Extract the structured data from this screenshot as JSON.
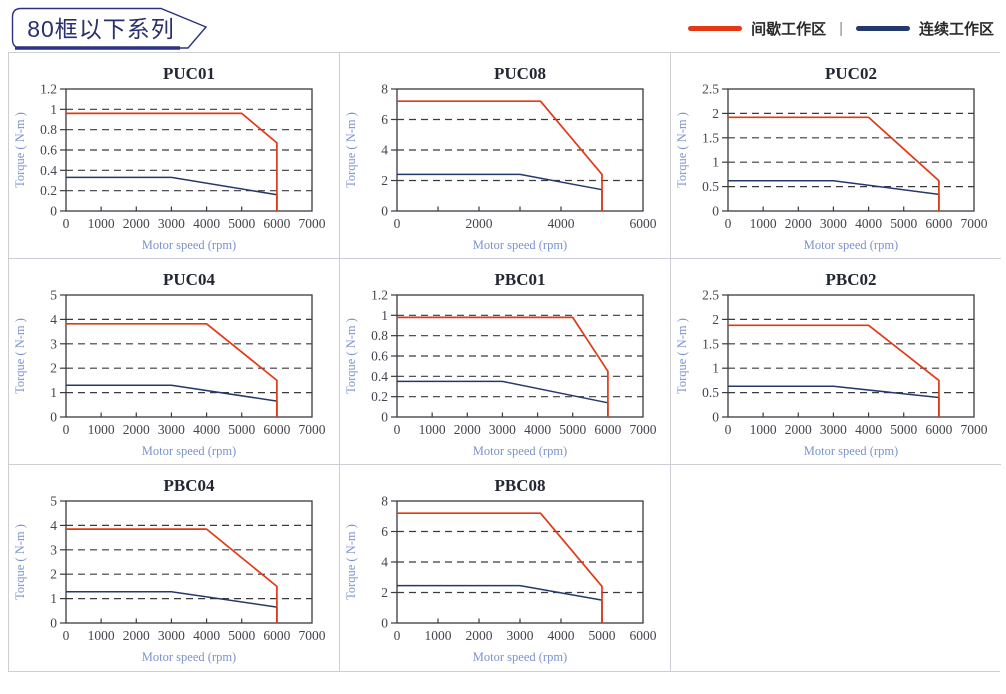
{
  "header": {
    "badge": "80框以下系列"
  },
  "legend": {
    "items": [
      {
        "key": "intermittent",
        "label": "间歇工作区",
        "color": "#e23914"
      },
      {
        "key": "continuous",
        "label": "连续工作区",
        "color": "#24396b"
      }
    ],
    "separator": "|"
  },
  "colors": {
    "accent_red": "#e23914",
    "accent_navy": "#24396b",
    "badge_navy": "#2b3380",
    "grid_line": "#3a3a40",
    "cell_border": "#ccced6",
    "axis_label_blue": "#7b93cc"
  },
  "chart_data": [
    {
      "type": "line",
      "title": "PUC01",
      "xlabel": "Motor speed (rpm)",
      "ylabel": "Torque ( N-m )",
      "xlim": [
        0,
        7000
      ],
      "ylim": [
        0,
        1.2
      ],
      "xticks": [
        0,
        1000,
        2000,
        3000,
        4000,
        5000,
        6000,
        7000
      ],
      "xticklabels": [
        "0",
        "1000",
        "2000",
        "3000",
        "4000",
        "5000",
        "6000",
        "7000"
      ],
      "yticks": [
        0,
        0.2,
        0.4,
        0.6,
        0.8,
        1,
        1.2
      ],
      "yticklabels": [
        "0",
        "0.2",
        "0.4",
        "0.6",
        "0.8",
        "1",
        "1.2"
      ],
      "grid": "dashed-horizontal",
      "legend_position": "page-top-right",
      "series": [
        {
          "name": "间歇工作区",
          "key": "intermittent",
          "points": [
            [
              0,
              0.96
            ],
            [
              5000,
              0.96
            ],
            [
              6000,
              0.67
            ],
            [
              6000,
              0
            ]
          ]
        },
        {
          "name": "连续工作区",
          "key": "continuous",
          "points": [
            [
              0,
              0.33
            ],
            [
              3000,
              0.33
            ],
            [
              6000,
              0.16
            ],
            [
              6000,
              0
            ]
          ]
        }
      ]
    },
    {
      "type": "line",
      "title": "PUC08",
      "xlabel": "Motor speed (rpm)",
      "ylabel": "Torque ( N-m )",
      "xlim": [
        0,
        6000
      ],
      "ylim": [
        0,
        8
      ],
      "xticks": [
        0,
        1000,
        2000,
        3000,
        4000,
        5000,
        6000
      ],
      "xticklabels": [
        "0",
        "",
        "2000",
        "",
        "4000",
        "",
        "6000"
      ],
      "yticks": [
        0,
        2,
        4,
        6,
        8
      ],
      "yticklabels": [
        "0",
        "2",
        "4",
        "6",
        "8"
      ],
      "grid": "dashed-horizontal",
      "legend_position": "page-top-right",
      "series": [
        {
          "name": "间歇工作区",
          "key": "intermittent",
          "points": [
            [
              0,
              7.2
            ],
            [
              3500,
              7.2
            ],
            [
              5000,
              2.4
            ],
            [
              5000,
              0
            ]
          ]
        },
        {
          "name": "连续工作区",
          "key": "continuous",
          "points": [
            [
              0,
              2.4
            ],
            [
              3000,
              2.4
            ],
            [
              5000,
              1.4
            ],
            [
              5000,
              0
            ]
          ]
        }
      ]
    },
    {
      "type": "line",
      "title": "PUC02",
      "xlabel": "Motor speed (rpm)",
      "ylabel": "Torque ( N-m )",
      "xlim": [
        0,
        7000
      ],
      "ylim": [
        0,
        2.5
      ],
      "xticks": [
        0,
        1000,
        2000,
        3000,
        4000,
        5000,
        6000,
        7000
      ],
      "xticklabels": [
        "0",
        "1000",
        "2000",
        "3000",
        "4000",
        "5000",
        "6000",
        "7000"
      ],
      "yticks": [
        0,
        0.5,
        1,
        1.5,
        2,
        2.5
      ],
      "yticklabels": [
        "0",
        "0.5",
        "1",
        "1.5",
        "2",
        "2.5"
      ],
      "grid": "dashed-horizontal",
      "legend_position": "page-top-right",
      "series": [
        {
          "name": "间歇工作区",
          "key": "intermittent",
          "points": [
            [
              0,
              1.92
            ],
            [
              4000,
              1.92
            ],
            [
              6000,
              0.62
            ],
            [
              6000,
              0
            ]
          ]
        },
        {
          "name": "连续工作区",
          "key": "continuous",
          "points": [
            [
              0,
              0.62
            ],
            [
              3000,
              0.62
            ],
            [
              6000,
              0.34
            ],
            [
              6000,
              0
            ]
          ]
        }
      ]
    },
    {
      "type": "line",
      "title": "PUC04",
      "xlabel": "Motor speed (rpm)",
      "ylabel": "Torque ( N-m )",
      "xlim": [
        0,
        7000
      ],
      "ylim": [
        0,
        5
      ],
      "xticks": [
        0,
        1000,
        2000,
        3000,
        4000,
        5000,
        6000,
        7000
      ],
      "xticklabels": [
        "0",
        "1000",
        "2000",
        "3000",
        "4000",
        "5000",
        "6000",
        "7000"
      ],
      "yticks": [
        0,
        1,
        2,
        3,
        4,
        5
      ],
      "yticklabels": [
        "0",
        "1",
        "2",
        "3",
        "4",
        "5"
      ],
      "grid": "dashed-horizontal",
      "legend_position": "page-top-right",
      "series": [
        {
          "name": "间歇工作区",
          "key": "intermittent",
          "points": [
            [
              0,
              3.82
            ],
            [
              4000,
              3.82
            ],
            [
              6000,
              1.5
            ],
            [
              6000,
              0
            ]
          ]
        },
        {
          "name": "连续工作区",
          "key": "continuous",
          "points": [
            [
              0,
              1.3
            ],
            [
              3000,
              1.3
            ],
            [
              6000,
              0.65
            ],
            [
              6000,
              0
            ]
          ]
        }
      ]
    },
    {
      "type": "line",
      "title": "PBC01",
      "xlabel": "Motor speed (rpm)",
      "ylabel": "Torque ( N-m )",
      "xlim": [
        0,
        7000
      ],
      "ylim": [
        0,
        1.2
      ],
      "xticks": [
        0,
        1000,
        2000,
        3000,
        4000,
        5000,
        6000,
        7000
      ],
      "xticklabels": [
        "0",
        "1000",
        "2000",
        "3000",
        "4000",
        "5000",
        "6000",
        "7000"
      ],
      "yticks": [
        0,
        0.2,
        0.4,
        0.6,
        0.8,
        1,
        1.2
      ],
      "yticklabels": [
        "0",
        "0.2",
        "0.4",
        "0.6",
        "0.8",
        "1",
        "1.2"
      ],
      "grid": "dashed-horizontal",
      "legend_position": "page-top-right",
      "series": [
        {
          "name": "间歇工作区",
          "key": "intermittent",
          "points": [
            [
              0,
              0.98
            ],
            [
              5000,
              0.98
            ],
            [
              6000,
              0.45
            ],
            [
              6000,
              0
            ]
          ]
        },
        {
          "name": "连续工作区",
          "key": "continuous",
          "points": [
            [
              0,
              0.35
            ],
            [
              3000,
              0.35
            ],
            [
              6000,
              0.14
            ],
            [
              6000,
              0
            ]
          ]
        }
      ]
    },
    {
      "type": "line",
      "title": "PBC02",
      "xlabel": "Motor speed (rpm)",
      "ylabel": "Torque ( N-m )",
      "xlim": [
        0,
        7000
      ],
      "ylim": [
        0,
        2.5
      ],
      "xticks": [
        0,
        1000,
        2000,
        3000,
        4000,
        5000,
        6000,
        7000
      ],
      "xticklabels": [
        "0",
        "1000",
        "2000",
        "3000",
        "4000",
        "5000",
        "6000",
        "7000"
      ],
      "yticks": [
        0,
        0.5,
        1,
        1.5,
        2,
        2.5
      ],
      "yticklabels": [
        "0",
        "0.5",
        "1",
        "1.5",
        "2",
        "2.5"
      ],
      "grid": "dashed-horizontal",
      "legend_position": "page-top-right",
      "series": [
        {
          "name": "间歇工作区",
          "key": "intermittent",
          "points": [
            [
              0,
              1.88
            ],
            [
              4000,
              1.88
            ],
            [
              6000,
              0.75
            ],
            [
              6000,
              0
            ]
          ]
        },
        {
          "name": "连续工作区",
          "key": "continuous",
          "points": [
            [
              0,
              0.63
            ],
            [
              3000,
              0.63
            ],
            [
              6000,
              0.4
            ],
            [
              6000,
              0
            ]
          ]
        }
      ]
    },
    {
      "type": "line",
      "title": "PBC04",
      "xlabel": "Motor speed (rpm)",
      "ylabel": "Torque ( N-m )",
      "xlim": [
        0,
        7000
      ],
      "ylim": [
        0,
        5
      ],
      "xticks": [
        0,
        1000,
        2000,
        3000,
        4000,
        5000,
        6000,
        7000
      ],
      "xticklabels": [
        "0",
        "1000",
        "2000",
        "3000",
        "4000",
        "5000",
        "6000",
        "7000"
      ],
      "yticks": [
        0,
        1,
        2,
        3,
        4,
        5
      ],
      "yticklabels": [
        "0",
        "1",
        "2",
        "3",
        "4",
        "5"
      ],
      "grid": "dashed-horizontal",
      "legend_position": "page-top-right",
      "series": [
        {
          "name": "间歇工作区",
          "key": "intermittent",
          "points": [
            [
              0,
              3.85
            ],
            [
              4000,
              3.85
            ],
            [
              6000,
              1.5
            ],
            [
              6000,
              0
            ]
          ]
        },
        {
          "name": "连续工作区",
          "key": "continuous",
          "points": [
            [
              0,
              1.28
            ],
            [
              3000,
              1.28
            ],
            [
              6000,
              0.65
            ],
            [
              6000,
              0
            ]
          ]
        }
      ]
    },
    {
      "type": "line",
      "title": "PBC08",
      "xlabel": "Motor speed (rpm)",
      "ylabel": "Torque ( N-m )",
      "xlim": [
        0,
        6000
      ],
      "ylim": [
        0,
        8
      ],
      "xticks": [
        0,
        1000,
        2000,
        3000,
        4000,
        5000,
        6000
      ],
      "xticklabels": [
        "0",
        "1000",
        "2000",
        "3000",
        "4000",
        "5000",
        "6000"
      ],
      "yticks": [
        0,
        2,
        4,
        6,
        8
      ],
      "yticklabels": [
        "0",
        "2",
        "4",
        "6",
        "8"
      ],
      "grid": "dashed-horizontal",
      "legend_position": "page-top-right",
      "series": [
        {
          "name": "间歇工作区",
          "key": "intermittent",
          "points": [
            [
              0,
              7.2
            ],
            [
              3500,
              7.2
            ],
            [
              5000,
              2.4
            ],
            [
              5000,
              0
            ]
          ]
        },
        {
          "name": "连续工作区",
          "key": "continuous",
          "points": [
            [
              0,
              2.45
            ],
            [
              3000,
              2.45
            ],
            [
              5000,
              1.5
            ],
            [
              5000,
              0
            ]
          ]
        }
      ]
    }
  ]
}
